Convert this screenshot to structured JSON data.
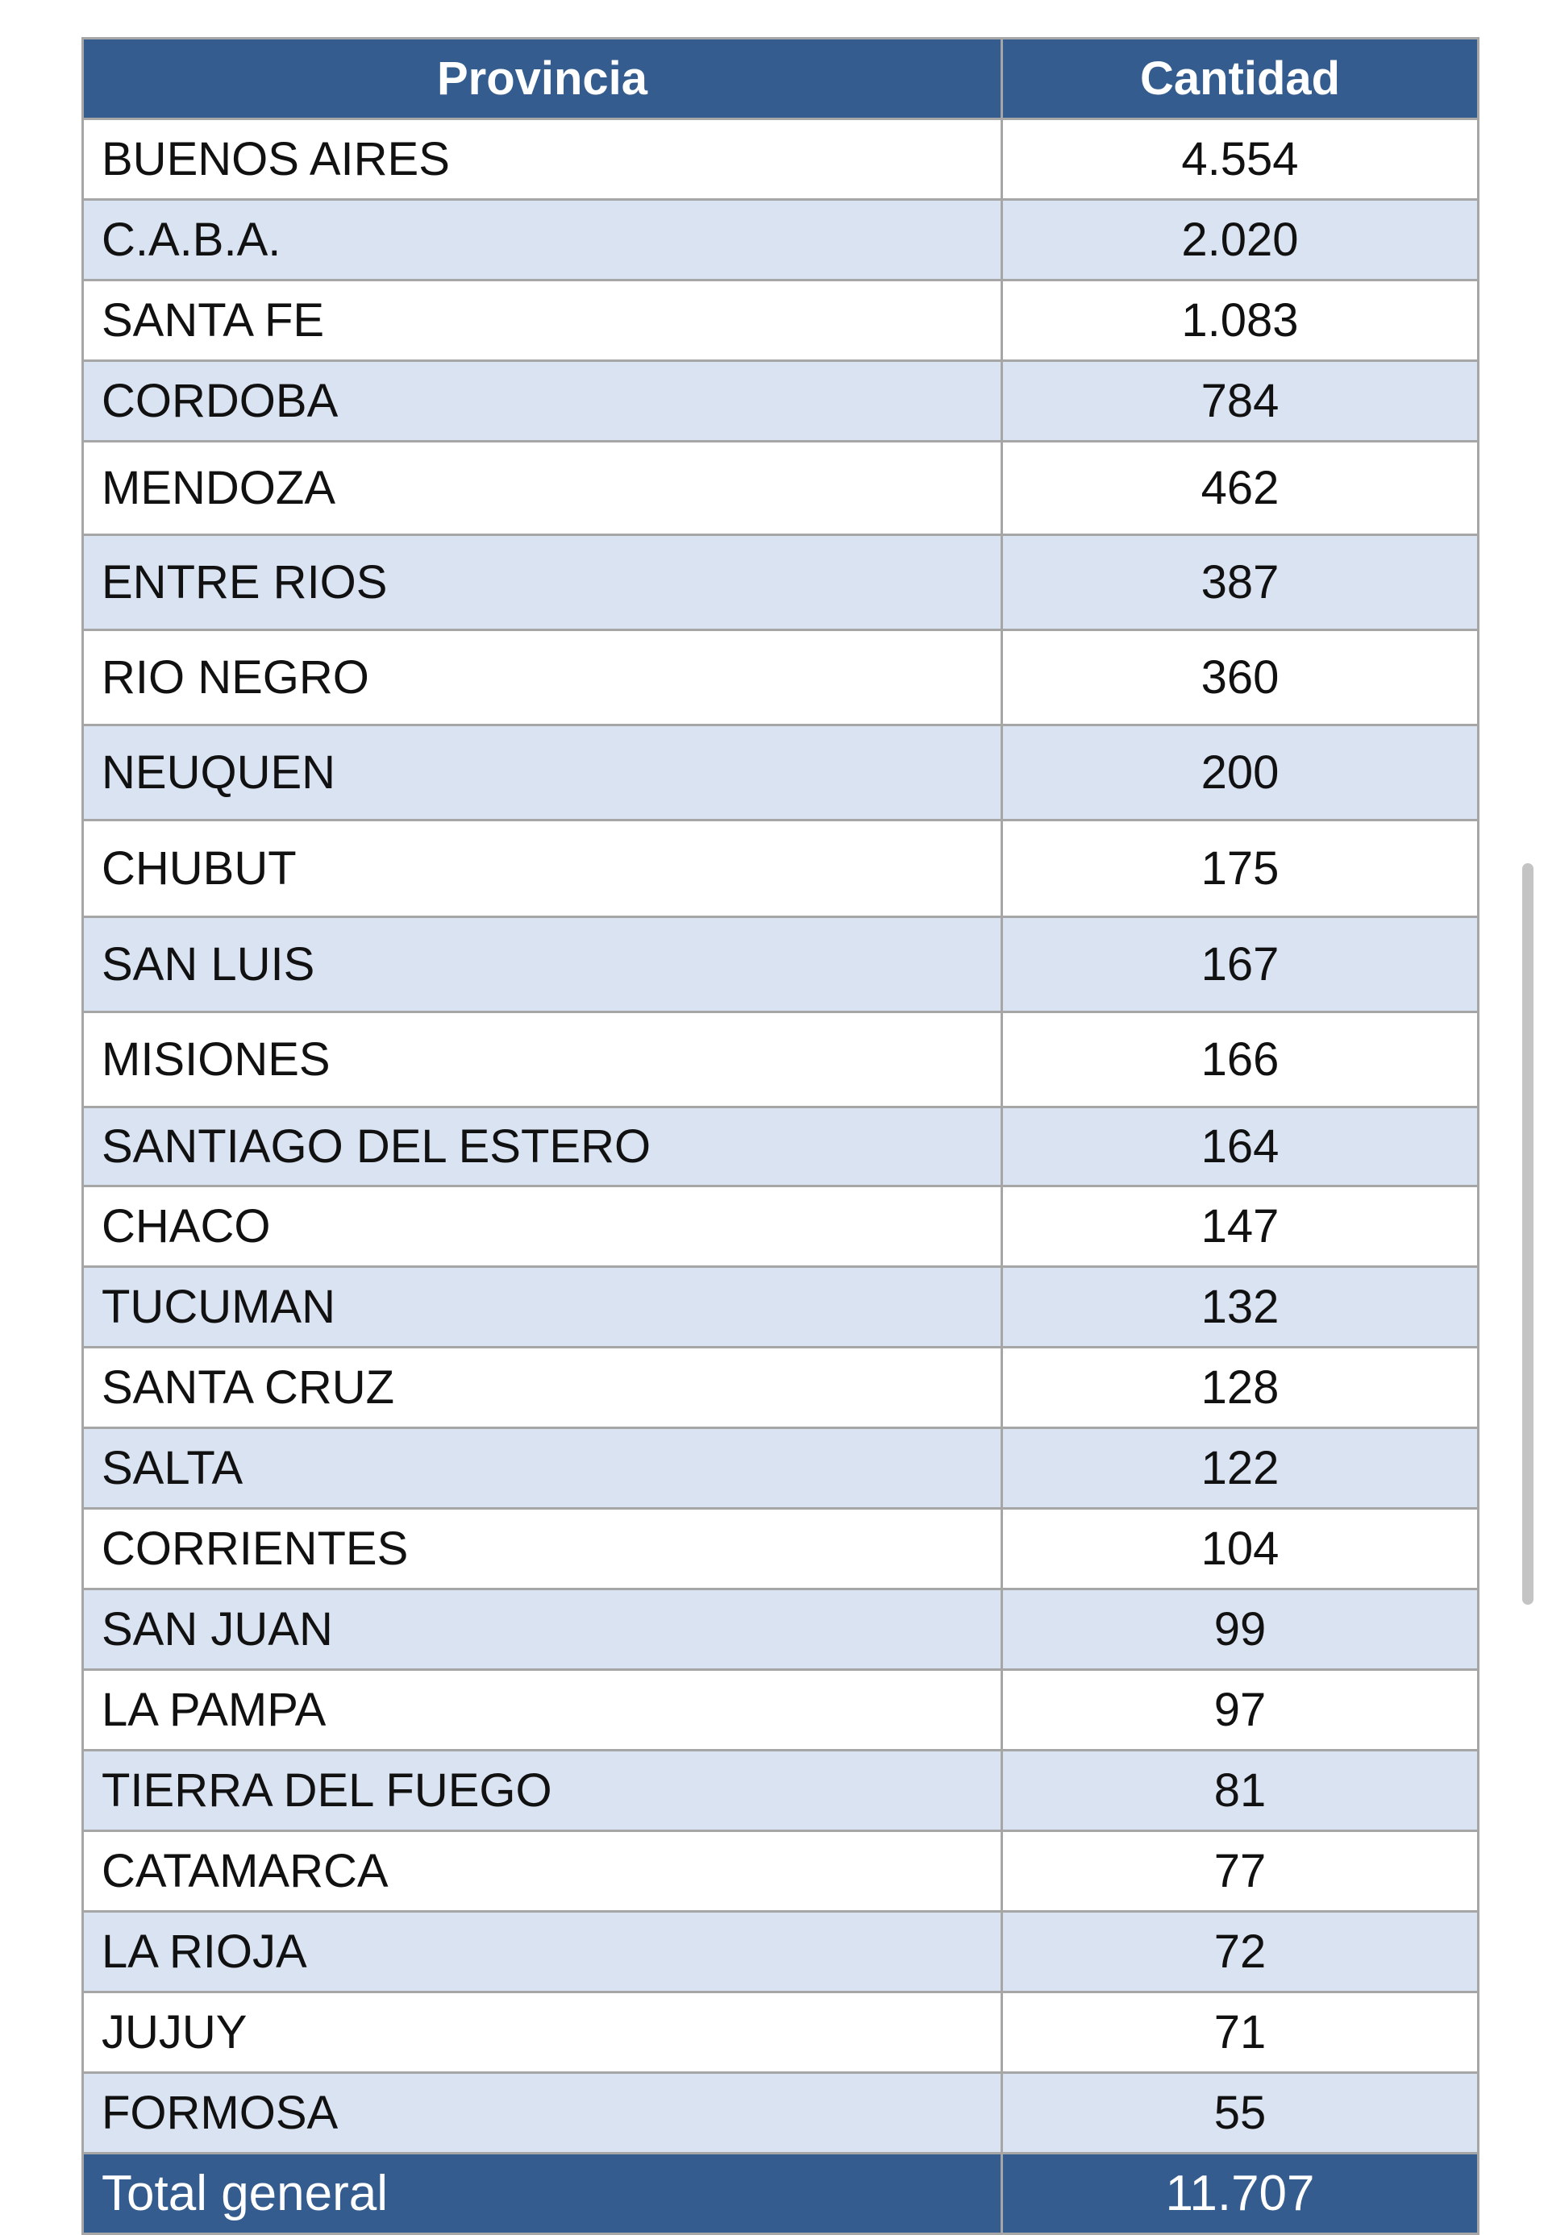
{
  "table": {
    "headers": [
      "Provincia",
      "Cantidad"
    ],
    "rows": [
      [
        "BUENOS AIRES",
        "4.554"
      ],
      [
        "C.A.B.A.",
        "2.020"
      ],
      [
        "SANTA FE",
        "1.083"
      ],
      [
        "CORDOBA",
        "784"
      ],
      [
        "MENDOZA",
        "462"
      ],
      [
        "ENTRE RIOS",
        "387"
      ],
      [
        "RIO NEGRO",
        "360"
      ],
      [
        "NEUQUEN",
        "200"
      ],
      [
        "CHUBUT",
        "175"
      ],
      [
        "SAN LUIS",
        "167"
      ],
      [
        "MISIONES",
        "166"
      ],
      [
        "SANTIAGO DEL ESTERO",
        "164"
      ],
      [
        "CHACO",
        "147"
      ],
      [
        "TUCUMAN",
        "132"
      ],
      [
        "SANTA CRUZ",
        "128"
      ],
      [
        "SALTA",
        "122"
      ],
      [
        "CORRIENTES",
        "104"
      ],
      [
        "SAN JUAN",
        "99"
      ],
      [
        "LA PAMPA",
        "97"
      ],
      [
        "TIERRA DEL FUEGO",
        "81"
      ],
      [
        "CATAMARCA",
        "77"
      ],
      [
        "LA RIOJA",
        "72"
      ],
      [
        "JUJUY",
        "71"
      ],
      [
        "FORMOSA",
        "55"
      ]
    ],
    "total": [
      "Total general",
      "11.707"
    ]
  },
  "colors": {
    "header_bg": "#345c8e",
    "band": "#dae3f1",
    "border": "#a6a6a6"
  }
}
